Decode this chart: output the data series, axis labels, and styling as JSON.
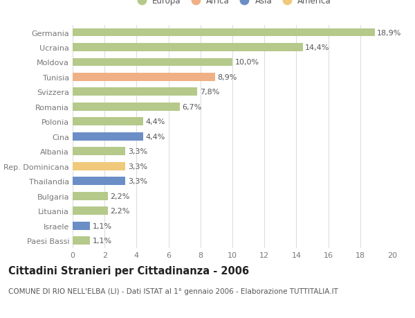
{
  "categories": [
    "Paesi Bassi",
    "Israele",
    "Lituania",
    "Bulgaria",
    "Thailandia",
    "Rep. Dominicana",
    "Albania",
    "Cina",
    "Polonia",
    "Romania",
    "Svizzera",
    "Tunisia",
    "Moldova",
    "Ucraina",
    "Germania"
  ],
  "values": [
    1.1,
    1.1,
    2.2,
    2.2,
    3.3,
    3.3,
    3.3,
    4.4,
    4.4,
    6.7,
    7.8,
    8.9,
    10.0,
    14.4,
    18.9
  ],
  "colors": [
    "#b5c98a",
    "#6b8ec7",
    "#b5c98a",
    "#b5c98a",
    "#6b8ec7",
    "#f0c97a",
    "#b5c98a",
    "#6b8ec7",
    "#b5c98a",
    "#b5c98a",
    "#b5c98a",
    "#f0b085",
    "#b5c98a",
    "#b5c98a",
    "#b5c98a"
  ],
  "labels": [
    "1,1%",
    "1,1%",
    "2,2%",
    "2,2%",
    "3,3%",
    "3,3%",
    "3,3%",
    "4,4%",
    "4,4%",
    "6,7%",
    "7,8%",
    "8,9%",
    "10,0%",
    "14,4%",
    "18,9%"
  ],
  "legend_labels": [
    "Europa",
    "Africa",
    "Asia",
    "America"
  ],
  "legend_colors": [
    "#b5c98a",
    "#f0b085",
    "#6b8ec7",
    "#f0c97a"
  ],
  "title": "Cittadini Stranieri per Cittadinanza - 2006",
  "subtitle": "COMUNE DI RIO NELL'ELBA (LI) - Dati ISTAT al 1° gennaio 2006 - Elaborazione TUTTITALIA.IT",
  "xlim": [
    0,
    20
  ],
  "xticks": [
    0,
    2,
    4,
    6,
    8,
    10,
    12,
    14,
    16,
    18,
    20
  ],
  "background_color": "#ffffff",
  "grid_color": "#dddddd",
  "bar_height": 0.55,
  "label_fontsize": 8,
  "tick_fontsize": 8,
  "title_fontsize": 10.5,
  "subtitle_fontsize": 7.5
}
